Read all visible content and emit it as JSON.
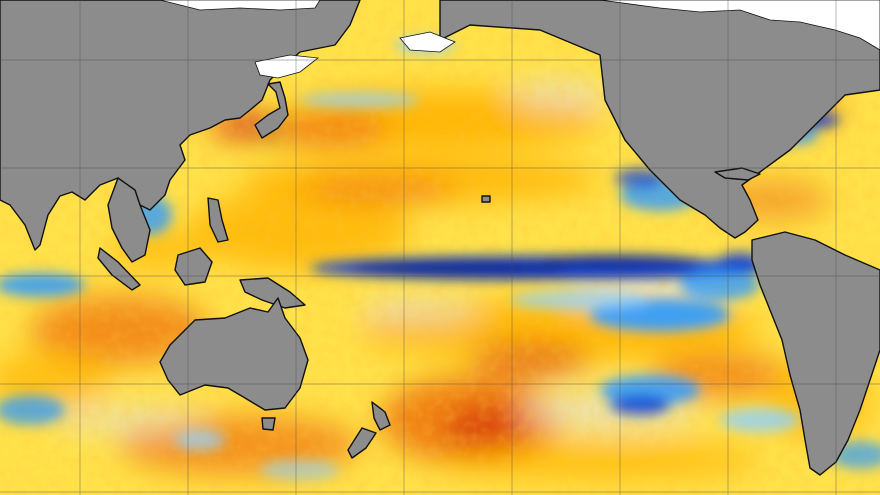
{
  "map": {
    "kind": "sea-surface-temperature-anomaly",
    "projection": "equirectangular-pacific-centered",
    "colors": {
      "land": "#8c8c8c",
      "ice": "#ffffff",
      "coastline": "#111111",
      "grid": "#4a4a4a",
      "neutral": "#e2e2e2",
      "warm_light": "#ffe24a",
      "warm": "#ffb300",
      "warmer": "#f07a12",
      "hot": "#d83a12",
      "extreme_hot": "#7a1a0a",
      "cool_light": "#8fd2ff",
      "cool": "#2e9bff",
      "cold": "#0a3fd8",
      "extreme_cold": "#08207a"
    },
    "graticule": "visible",
    "labels": []
  }
}
